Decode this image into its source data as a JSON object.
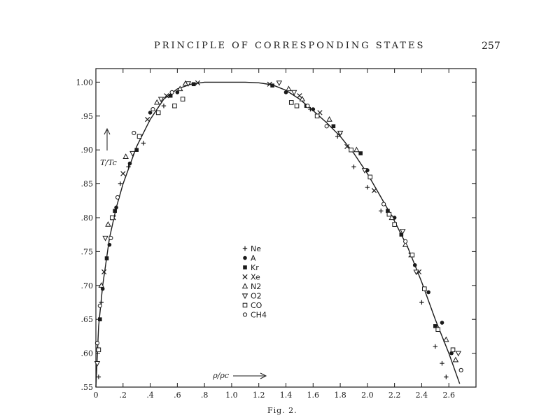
{
  "header": {
    "running_head": "PRINCIPLE OF CORRESPONDING STATES",
    "page_number": "257"
  },
  "caption": "Fig. 2.",
  "chart_data": {
    "type": "scatter",
    "title": "",
    "xlabel": "ρ/ρc",
    "ylabel": "T/Tc",
    "xlim": [
      0,
      2.8
    ],
    "ylim": [
      0.55,
      1.02
    ],
    "x_ticks": [
      0,
      0.2,
      0.4,
      0.6,
      0.8,
      1.0,
      1.2,
      1.4,
      1.6,
      1.8,
      2.0,
      2.2,
      2.4,
      2.6
    ],
    "x_tick_labels": [
      "0",
      ".2",
      ".4",
      ".6",
      ".8",
      "1.0",
      "1.2",
      "1.4",
      "1.6",
      "1.8",
      "2.0",
      "2.2",
      "2.4",
      "2.6"
    ],
    "y_ticks": [
      0.55,
      0.6,
      0.65,
      0.7,
      0.75,
      0.8,
      0.85,
      0.9,
      0.95,
      1.0
    ],
    "y_tick_labels": [
      ".55",
      ".60",
      ".65",
      ".70",
      ".75",
      ".80",
      ".85",
      ".90",
      ".95",
      "1.00"
    ],
    "grid": false,
    "legend_position": "center",
    "curve": {
      "x": [
        0.0,
        0.02,
        0.05,
        0.1,
        0.15,
        0.2,
        0.3,
        0.4,
        0.5,
        0.6,
        0.7,
        0.8,
        0.9,
        1.0,
        1.1,
        1.2,
        1.3,
        1.4,
        1.5,
        1.6,
        1.7,
        1.8,
        1.9,
        2.0,
        2.1,
        2.2,
        2.3,
        2.4,
        2.5,
        2.6,
        2.68
      ],
      "y": [
        0.55,
        0.64,
        0.7,
        0.77,
        0.815,
        0.85,
        0.905,
        0.945,
        0.975,
        0.99,
        0.997,
        1.0,
        1.0,
        1.0,
        1.0,
        0.999,
        0.996,
        0.988,
        0.975,
        0.958,
        0.94,
        0.92,
        0.895,
        0.865,
        0.83,
        0.795,
        0.755,
        0.705,
        0.65,
        0.6,
        0.555
      ]
    },
    "series": [
      {
        "name": "Ne",
        "marker": "plus",
        "x": [
          0.02,
          0.04,
          0.18,
          0.24,
          0.35,
          0.5,
          2.1,
          2.4,
          2.5,
          2.55,
          2.58,
          1.78,
          1.9,
          2.0,
          1.58
        ],
        "y": [
          0.565,
          0.675,
          0.85,
          0.875,
          0.91,
          0.965,
          0.81,
          0.675,
          0.61,
          0.585,
          0.565,
          0.92,
          0.875,
          0.845,
          0.96
        ]
      },
      {
        "name": "A",
        "marker": "circle-filled",
        "x": [
          0.05,
          0.1,
          0.15,
          0.25,
          0.4,
          0.6,
          1.4,
          1.6,
          1.8,
          2.0,
          2.2,
          2.35,
          2.45,
          2.55,
          2.62
        ],
        "y": [
          0.695,
          0.76,
          0.815,
          0.88,
          0.955,
          0.985,
          0.985,
          0.96,
          0.925,
          0.87,
          0.8,
          0.73,
          0.69,
          0.645,
          0.6
        ]
      },
      {
        "name": "Kr",
        "marker": "square-filled",
        "x": [
          0.03,
          0.08,
          0.14,
          0.3,
          0.55,
          0.72,
          1.3,
          1.55,
          1.75,
          1.95,
          2.15,
          2.25,
          2.5
        ],
        "y": [
          0.65,
          0.74,
          0.81,
          0.9,
          0.98,
          0.997,
          0.995,
          0.965,
          0.935,
          0.895,
          0.81,
          0.775,
          0.64
        ]
      },
      {
        "name": "Xe",
        "marker": "cross",
        "x": [
          0.06,
          0.13,
          0.2,
          0.38,
          0.52,
          0.75,
          1.28,
          1.5,
          1.65,
          1.85,
          2.05,
          2.32,
          2.38
        ],
        "y": [
          0.72,
          0.8,
          0.865,
          0.945,
          0.98,
          0.999,
          0.997,
          0.98,
          0.955,
          0.905,
          0.84,
          0.745,
          0.72
        ]
      },
      {
        "name": "N2",
        "marker": "triangle-up",
        "x": [
          0.04,
          0.09,
          0.22,
          0.45,
          0.62,
          0.66,
          1.42,
          1.52,
          1.72,
          1.92,
          2.18,
          2.28,
          2.58,
          2.65
        ],
        "y": [
          0.7,
          0.79,
          0.89,
          0.97,
          0.99,
          0.998,
          0.99,
          0.975,
          0.945,
          0.9,
          0.8,
          0.76,
          0.62,
          0.59
        ]
      },
      {
        "name": "O2",
        "marker": "triangle-down",
        "x": [
          0.01,
          0.07,
          0.27,
          0.48,
          0.68,
          1.35,
          1.46,
          1.8,
          1.98,
          2.26,
          2.36,
          2.67
        ],
        "y": [
          0.585,
          0.77,
          0.895,
          0.975,
          0.998,
          0.999,
          0.985,
          0.925,
          0.87,
          0.78,
          0.72,
          0.6
        ]
      },
      {
        "name": "CO",
        "marker": "square-open",
        "x": [
          0.02,
          0.12,
          0.32,
          0.46,
          0.58,
          0.64,
          1.44,
          1.48,
          1.63,
          1.88,
          2.02,
          2.16,
          2.2,
          2.33,
          2.42,
          2.52,
          2.63
        ],
        "y": [
          0.605,
          0.8,
          0.92,
          0.955,
          0.965,
          0.975,
          0.97,
          0.965,
          0.95,
          0.9,
          0.86,
          0.805,
          0.79,
          0.745,
          0.695,
          0.635,
          0.605
        ]
      },
      {
        "name": "CH4",
        "marker": "circle-open",
        "x": [
          0.01,
          0.03,
          0.11,
          0.16,
          0.28,
          0.42,
          0.56,
          1.56,
          1.7,
          2.12,
          2.28,
          2.69
        ],
        "y": [
          0.615,
          0.67,
          0.77,
          0.83,
          0.925,
          0.96,
          0.985,
          0.965,
          0.935,
          0.82,
          0.765,
          0.575
        ]
      }
    ],
    "legend": [
      {
        "label": "Ne",
        "marker": "plus"
      },
      {
        "label": "A",
        "marker": "circle-filled"
      },
      {
        "label": "Kr",
        "marker": "square-filled"
      },
      {
        "label": "Xe",
        "marker": "cross"
      },
      {
        "label": "N2",
        "marker": "triangle-up"
      },
      {
        "label": "O2",
        "marker": "triangle-down"
      },
      {
        "label": "CO",
        "marker": "square-open"
      },
      {
        "label": "CH4",
        "marker": "circle-open"
      }
    ]
  }
}
